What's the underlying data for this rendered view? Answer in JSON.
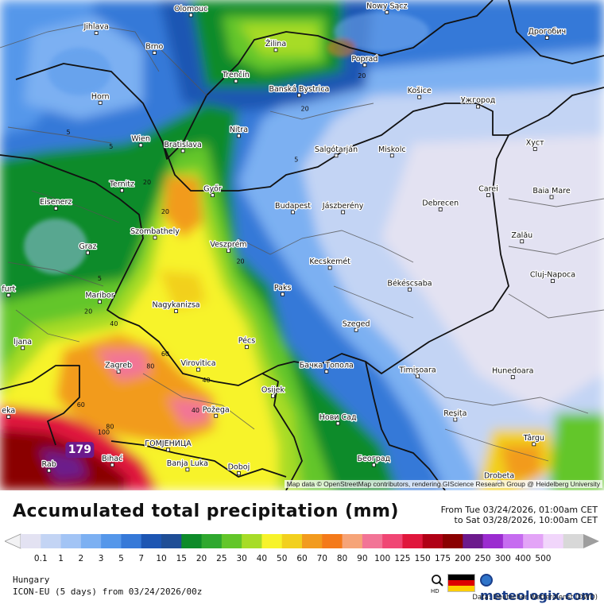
{
  "map": {
    "attribution": "Map data © OpenStreetMap contributors, rendering GIScience Research Group @ Heidelberg University",
    "cities": [
      {
        "name": "Olomouc",
        "lon": 17.25,
        "lat": 49.59
      },
      {
        "name": "Nowy Sącz",
        "lon": 20.69,
        "lat": 49.62
      },
      {
        "name": "Дрогобич",
        "lon": 23.5,
        "lat": 49.35
      },
      {
        "name": "Jihlava",
        "lon": 15.59,
        "lat": 49.4
      },
      {
        "name": "Brno",
        "lon": 16.61,
        "lat": 49.19
      },
      {
        "name": "Žilina",
        "lon": 18.74,
        "lat": 49.22
      },
      {
        "name": "Poprad",
        "lon": 20.3,
        "lat": 49.06
      },
      {
        "name": "Trenčín",
        "lon": 18.04,
        "lat": 48.89
      },
      {
        "name": "Banská Bystrica",
        "lon": 19.15,
        "lat": 48.74
      },
      {
        "name": "Košice",
        "lon": 21.26,
        "lat": 48.72
      },
      {
        "name": "Ужгород",
        "lon": 22.29,
        "lat": 48.62
      },
      {
        "name": "Horn",
        "lon": 15.66,
        "lat": 48.66
      },
      {
        "name": "Nitra",
        "lon": 18.09,
        "lat": 48.31
      },
      {
        "name": "Хуст",
        "lon": 23.29,
        "lat": 48.17
      },
      {
        "name": "Wien",
        "lon": 16.37,
        "lat": 48.21
      },
      {
        "name": "Bratislava",
        "lon": 17.11,
        "lat": 48.15
      },
      {
        "name": "Salgótarján",
        "lon": 19.8,
        "lat": 48.1
      },
      {
        "name": "Miskolc",
        "lon": 20.78,
        "lat": 48.1
      },
      {
        "name": "Ternitz",
        "lon": 16.04,
        "lat": 47.73
      },
      {
        "name": "Győr",
        "lon": 17.63,
        "lat": 47.68
      },
      {
        "name": "Carei",
        "lon": 22.47,
        "lat": 47.68
      },
      {
        "name": "Baia Mare",
        "lon": 23.58,
        "lat": 47.66
      },
      {
        "name": "Eisenerz",
        "lon": 14.88,
        "lat": 47.54
      },
      {
        "name": "Budapest",
        "lon": 19.04,
        "lat": 47.5
      },
      {
        "name": "Jászberény",
        "lon": 19.92,
        "lat": 47.5
      },
      {
        "name": "Debrecen",
        "lon": 21.63,
        "lat": 47.53
      },
      {
        "name": "Szombathely",
        "lon": 16.62,
        "lat": 47.23
      },
      {
        "name": "Zalău",
        "lon": 23.06,
        "lat": 47.19
      },
      {
        "name": "Graz",
        "lon": 15.44,
        "lat": 47.07
      },
      {
        "name": "Veszprém",
        "lon": 17.91,
        "lat": 47.09
      },
      {
        "name": "Kecskemét",
        "lon": 19.69,
        "lat": 46.91
      },
      {
        "name": "Cluj-Napoca",
        "lon": 23.6,
        "lat": 46.77
      },
      {
        "name": "Békéscsaba",
        "lon": 21.09,
        "lat": 46.68
      },
      {
        "name": "Paks",
        "lon": 18.86,
        "lat": 46.63
      },
      {
        "name": "Maribor",
        "lon": 15.65,
        "lat": 46.55
      },
      {
        "name": "Nagykanizsa",
        "lon": 16.99,
        "lat": 46.45
      },
      {
        "name": "Szeged",
        "lon": 20.15,
        "lat": 46.25
      },
      {
        "name": "Pécs",
        "lon": 18.23,
        "lat": 46.07
      },
      {
        "name": "Бачка Топола",
        "lon": 19.63,
        "lat": 45.81
      },
      {
        "name": "Zagreb",
        "lon": 15.98,
        "lat": 45.81
      },
      {
        "name": "Virovitica",
        "lon": 17.38,
        "lat": 45.83
      },
      {
        "name": "Timișoara",
        "lon": 21.23,
        "lat": 45.76
      },
      {
        "name": "Hunedoara",
        "lon": 22.9,
        "lat": 45.75
      },
      {
        "name": "Osijek",
        "lon": 18.69,
        "lat": 45.55
      },
      {
        "name": "Požega",
        "lon": 17.69,
        "lat": 45.34
      },
      {
        "name": "Нови Сад",
        "lon": 19.83,
        "lat": 45.26
      },
      {
        "name": "Reșița",
        "lon": 21.89,
        "lat": 45.3
      },
      {
        "name": "Târgu",
        "lon": 23.27,
        "lat": 45.04
      },
      {
        "name": "ГОМЈЕНИЦА",
        "lon": 16.85,
        "lat": 44.98
      },
      {
        "name": "Bihać",
        "lon": 15.87,
        "lat": 44.82
      },
      {
        "name": "Београд",
        "lon": 20.46,
        "lat": 44.82
      },
      {
        "name": "Banja Luka",
        "lon": 17.19,
        "lat": 44.77
      },
      {
        "name": "Doboj",
        "lon": 18.09,
        "lat": 44.73
      },
      {
        "name": "Drobeta",
        "lon": 22.66,
        "lat": 44.64
      },
      {
        "name": "Rab",
        "lon": 14.76,
        "lat": 44.76
      },
      {
        "name": "Ljubljana",
        "lon": 14.3,
        "lat": 46.06
      },
      {
        "name": "Klagenfurt",
        "lon": 14.05,
        "lat": 46.62
      },
      {
        "name": "Rijeka",
        "lon": 14.05,
        "lat": 45.33
      }
    ],
    "cities_shown_partially": {
      "Ljubljana": "ljana",
      "Klagenfurt": "furt",
      "Rijeka": "eka",
      "Drobeta": "Drobeta"
    },
    "contour_labels": [
      {
        "text": "20",
        "lon": 19.25,
        "lat": 48.6
      },
      {
        "text": "20",
        "lon": 20.25,
        "lat": 48.95
      },
      {
        "text": "5",
        "lon": 15.1,
        "lat": 48.35
      },
      {
        "text": "5",
        "lon": 15.85,
        "lat": 48.2
      },
      {
        "text": "5",
        "lon": 19.1,
        "lat": 48.06
      },
      {
        "text": "20",
        "lon": 16.48,
        "lat": 47.82
      },
      {
        "text": "20",
        "lon": 16.8,
        "lat": 47.51
      },
      {
        "text": "20",
        "lon": 18.12,
        "lat": 46.98
      },
      {
        "text": "5",
        "lon": 15.65,
        "lat": 46.8
      },
      {
        "text": "20",
        "lon": 15.45,
        "lat": 46.45
      },
      {
        "text": "40",
        "lon": 15.9,
        "lat": 46.32
      },
      {
        "text": "60",
        "lon": 16.8,
        "lat": 46.0
      },
      {
        "text": "80",
        "lon": 16.54,
        "lat": 45.87
      },
      {
        "text": "40",
        "lon": 17.52,
        "lat": 45.72
      },
      {
        "text": "60",
        "lon": 15.32,
        "lat": 45.46
      },
      {
        "text": "40",
        "lon": 17.33,
        "lat": 45.4
      },
      {
        "text": "100",
        "lon": 15.72,
        "lat": 45.17
      },
      {
        "text": "80",
        "lon": 15.83,
        "lat": 45.23
      },
      {
        "text": "179",
        "lon": 15.3,
        "lat": 44.97
      }
    ],
    "max_value_label": "179"
  },
  "legend": {
    "title": "Accumulated total precipitation (mm)",
    "from": "From Tue 03/24/2026, 01:00am CET",
    "to": "to Sat 03/28/2026, 10:00am CET",
    "ticks": [
      "0.1",
      "1",
      "2",
      "3",
      "5",
      "7",
      "10",
      "15",
      "20",
      "25",
      "30",
      "40",
      "50",
      "60",
      "70",
      "80",
      "90",
      "100",
      "125",
      "150",
      "175",
      "200",
      "250",
      "300",
      "400",
      "500"
    ],
    "colors": [
      "#e3e2f2",
      "#c3d4f4",
      "#a2c4f5",
      "#7cb0f2",
      "#5597ea",
      "#3679d8",
      "#1d56b3",
      "#1f4e96",
      "#0e8b2a",
      "#2fa82f",
      "#63c62a",
      "#a7dc28",
      "#f7f32b",
      "#f2d01e",
      "#f29b1e",
      "#f47a1a",
      "#f6a478",
      "#f27496",
      "#f04674",
      "#e0173c",
      "#b00015",
      "#8a0000",
      "#6c1a8c",
      "#9b2cd0",
      "#c66cf0",
      "#e3a4f7",
      "#f1d6fb",
      "#d8d8d8"
    ]
  },
  "footer": {
    "region": "Hungary",
    "model": "ICON-EU (5 days) from 03/24/2026/00z",
    "zoom_label": "HD",
    "brand": "meteologix.com",
    "source": "Data: Deutscher Wetterdienst (DWD)"
  }
}
